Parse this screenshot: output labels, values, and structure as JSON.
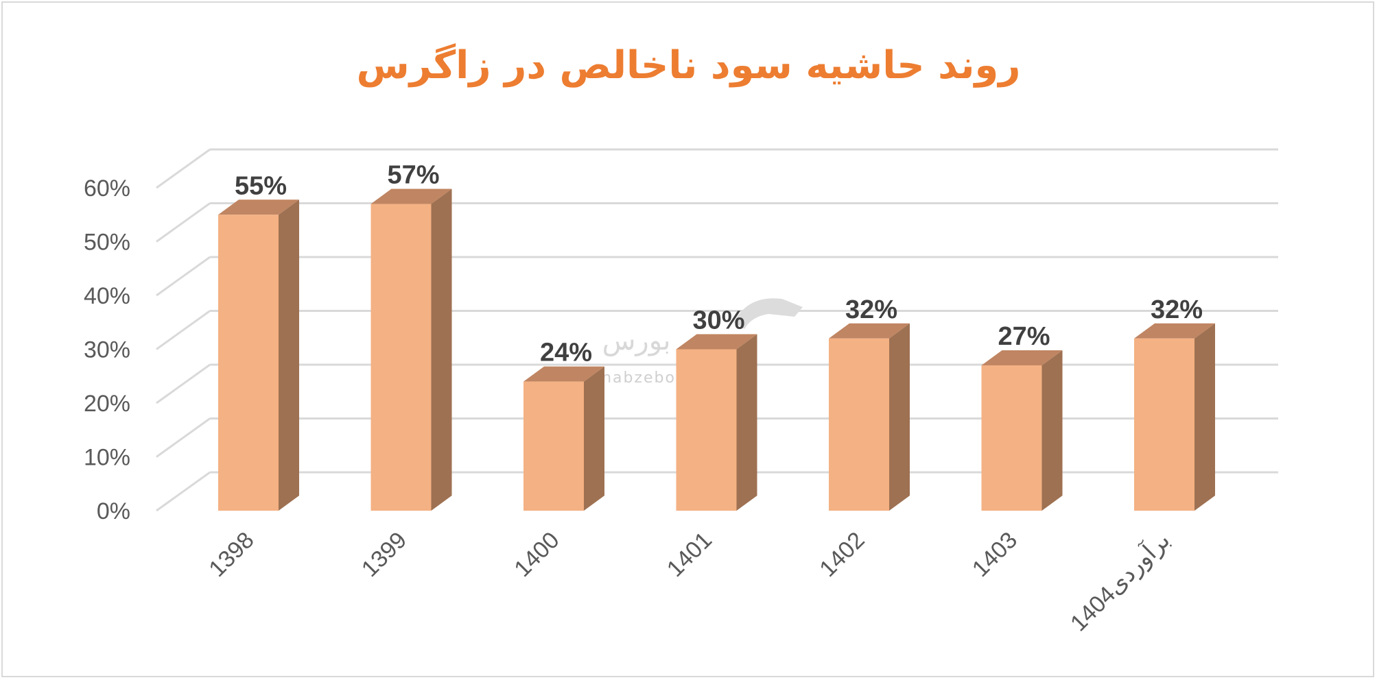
{
  "chart_data": {
    "type": "bar",
    "title": "روند حاشیه سود ناخالص در زاگرس",
    "categories": [
      "1398",
      "1399",
      "1400",
      "1401",
      "1402",
      "1403",
      "1404برآوردی"
    ],
    "values": [
      55,
      57,
      24,
      30,
      32,
      27,
      32
    ],
    "data_labels": [
      "55%",
      "57%",
      "24%",
      "30%",
      "32%",
      "27%",
      "32%"
    ],
    "y_ticks": [
      "0%",
      "10%",
      "20%",
      "30%",
      "40%",
      "50%",
      "60%"
    ],
    "ylim": [
      0,
      60
    ],
    "grid": true,
    "style": "3d-column",
    "colors": {
      "bar_front": "#f4b183",
      "bar_side": "#9e7152",
      "bar_top": "#c08562",
      "title": "#ed7d31",
      "grid": "#d9d9d9"
    }
  },
  "watermark": {
    "text": "nabzebourse.com",
    "logo": "نبض بورس"
  }
}
